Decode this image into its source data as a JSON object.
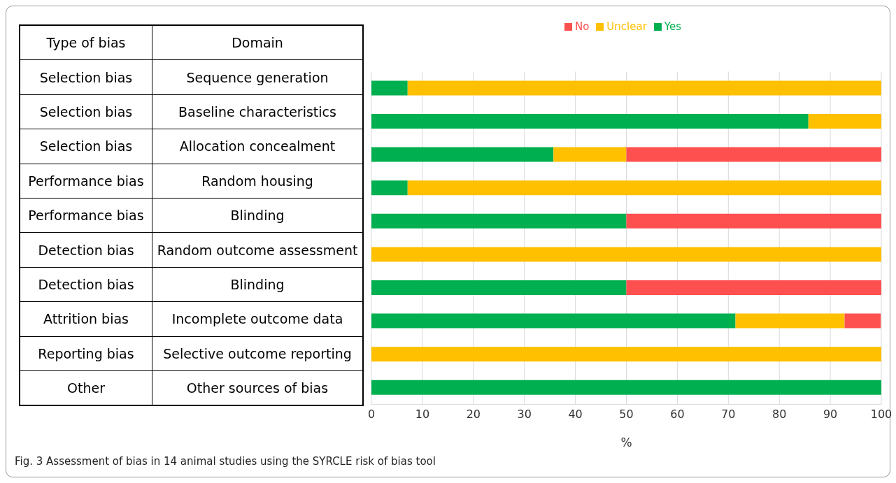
{
  "chart_data": {
    "type": "bar",
    "orientation": "horizontal",
    "stacked": true,
    "categories": [
      "Sequence generation",
      "Baseline characteristics",
      "Allocation concealment",
      "Random housing",
      "Blinding",
      "Random outcome assessment",
      "Blinding",
      "Incomplete outcome data",
      "Selective outcome reporting",
      "Other sources of bias"
    ],
    "series": [
      {
        "name": "Yes",
        "color": "#00b050",
        "values": [
          7.1,
          85.7,
          35.7,
          7.1,
          50,
          0,
          50,
          71.4,
          0,
          100
        ]
      },
      {
        "name": "Unclear",
        "color": "#ffc000",
        "values": [
          92.9,
          14.3,
          14.3,
          92.9,
          0,
          100,
          0,
          21.4,
          100,
          0
        ]
      },
      {
        "name": "No",
        "color": "#ff5050",
        "values": [
          0,
          0,
          50,
          0,
          50,
          0,
          50,
          7.1,
          0,
          0
        ]
      }
    ],
    "xlim": [
      0,
      100
    ],
    "xticks": [
      0,
      10,
      20,
      30,
      40,
      50,
      60,
      70,
      80,
      90,
      100
    ],
    "xlabel": "%",
    "grid": "x",
    "legend": "top",
    "annotations": [
      "Type of bias",
      "Domain",
      "Selection bias",
      "Selection bias",
      "Selection bias",
      "Performance bias",
      "Performance bias",
      "Detection bias",
      "Detection bias",
      "Attrition bias",
      "Reporting bias",
      "Other",
      "Fig. 3  Assessment of bias in 14 animal studies using the SYRCLE risk of bias tool"
    ]
  }
}
